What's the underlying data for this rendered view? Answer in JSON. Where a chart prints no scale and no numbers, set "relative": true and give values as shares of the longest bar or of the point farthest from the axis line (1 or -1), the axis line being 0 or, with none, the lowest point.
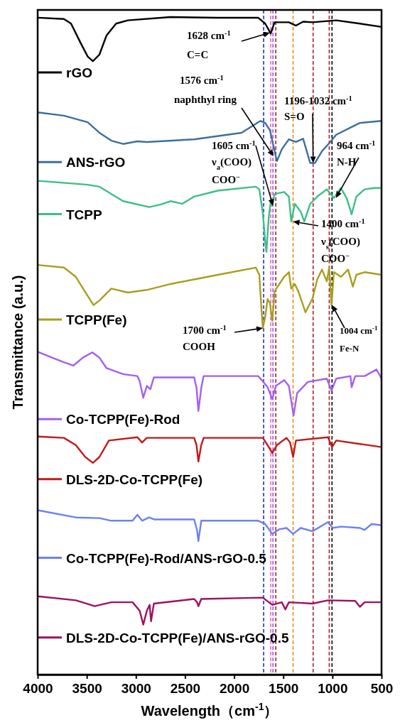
{
  "chart_data": {
    "type": "line",
    "relative": true,
    "xlabel": "Wavelength（cm$^{-1}$）",
    "ylabel": "Transmittance (a.u.)",
    "xlim": [
      4000,
      500
    ],
    "xticks": [
      4000,
      3500,
      3000,
      2500,
      2000,
      1500,
      1000,
      500
    ],
    "grid": false,
    "legend": "left",
    "marker": "none",
    "line_style": "solid",
    "series": [
      {
        "name": "rGO",
        "color": "#000000",
        "x": [
          4000,
          3733,
          3660,
          3564,
          3491,
          3438,
          3371,
          3299,
          3202,
          3082,
          2648,
          2166,
          1756,
          1684,
          1628,
          1588,
          1443,
          1371,
          1298,
          1202,
          961,
          720,
          500
        ],
        "values": [
          0.999,
          0.997,
          0.99,
          0.961,
          0.94,
          0.933,
          0.943,
          0.972,
          0.99,
          0.995,
          1,
          0.999,
          0.999,
          0.99,
          0.975,
          0.992,
          0.992,
          0.987,
          0.993,
          0.992,
          0.995,
          0.99,
          0.985
        ]
      },
      {
        "name": "ANS-rGO",
        "color": "#3d6f9c",
        "x": [
          4000,
          3733,
          3491,
          3371,
          3250,
          3130,
          2985,
          2889,
          2407,
          1925,
          1732,
          1684,
          1636,
          1576,
          1564,
          1515,
          1443,
          1371,
          1298,
          1226,
          1178,
          1106,
          1033,
          961,
          816,
          720,
          500
        ],
        "values": [
          0.855,
          0.85,
          0.84,
          0.824,
          0.812,
          0.807,
          0.811,
          0.81,
          0.814,
          0.824,
          0.842,
          0.839,
          0.828,
          0.788,
          0.781,
          0.799,
          0.814,
          0.81,
          0.815,
          0.778,
          0.778,
          0.796,
          0.808,
          0.821,
          0.832,
          0.839,
          0.842
        ]
      },
      {
        "name": "TCPP",
        "color": "#3cbf86",
        "x": [
          4000,
          3491,
          3371,
          3130,
          2865,
          2744,
          2648,
          2528,
          2407,
          2166,
          1780,
          1744,
          1708,
          1684,
          1672,
          1648,
          1624,
          1612,
          1588,
          1491,
          1443,
          1419,
          1383,
          1323,
          1286,
          1226,
          1154,
          1057,
          985,
          913,
          853,
          804,
          756,
          672,
          575,
          500
        ],
        "values": [
          0.751,
          0.745,
          0.742,
          0.72,
          0.711,
          0.715,
          0.72,
          0.716,
          0.727,
          0.736,
          0.742,
          0.738,
          0.702,
          0.659,
          0.643,
          0.695,
          0.724,
          0.713,
          0.731,
          0.734,
          0.727,
          0.689,
          0.716,
          0.704,
          0.689,
          0.716,
          0.727,
          0.738,
          0.725,
          0.74,
          0.724,
          0.7,
          0.727,
          0.738,
          0.74,
          0.74
        ]
      },
      {
        "name": "TCPP(Fe)",
        "color": "#a89e1e",
        "x": [
          4000,
          3733,
          3612,
          3491,
          3431,
          3371,
          3250,
          3082,
          2889,
          2648,
          2166,
          1780,
          1744,
          1720,
          1708,
          1684,
          1660,
          1636,
          1612,
          1588,
          1491,
          1443,
          1419,
          1383,
          1347,
          1274,
          1202,
          1154,
          1106,
          1057,
          1033,
          1009,
          985,
          913,
          840,
          792,
          756,
          672,
          500
        ],
        "values": [
          0.623,
          0.619,
          0.605,
          0.576,
          0.562,
          0.569,
          0.587,
          0.581,
          0.585,
          0.594,
          0.608,
          0.619,
          0.608,
          0.551,
          0.527,
          0.544,
          0.571,
          0.565,
          0.538,
          0.583,
          0.605,
          0.612,
          0.587,
          0.594,
          0.583,
          0.551,
          0.572,
          0.601,
          0.616,
          0.598,
          0.619,
          0.562,
          0.612,
          0.605,
          0.616,
          0.59,
          0.608,
          0.612,
          0.608
        ]
      },
      {
        "name": "Co-TCPP(Fe)-Rod",
        "color": "#a35ff2",
        "x": [
          4000,
          3853,
          3733,
          3636,
          3540,
          3443,
          3371,
          3299,
          3130,
          2985,
          2961,
          2925,
          2889,
          2853,
          2817,
          2407,
          2383,
          2364,
          2335,
          2311,
          1756,
          1708,
          1660,
          1612,
          1576,
          1491,
          1443,
          1395,
          1359,
          1250,
          1057,
          1009,
          961,
          816,
          804,
          768,
          672,
          551,
          500
        ],
        "values": [
          0.491,
          0.482,
          0.475,
          0.47,
          0.482,
          0.49,
          0.482,
          0.466,
          0.457,
          0.454,
          0.446,
          0.421,
          0.439,
          0.434,
          0.452,
          0.452,
          0.436,
          0.401,
          0.436,
          0.454,
          0.454,
          0.446,
          0.437,
          0.419,
          0.439,
          0.448,
          0.439,
          0.394,
          0.428,
          0.445,
          0.45,
          0.432,
          0.45,
          0.454,
          0.437,
          0.454,
          0.454,
          0.464,
          0.45
        ]
      },
      {
        "name": "DLS-2D-Co-TCPP(Fe)",
        "color": "#c01a1a",
        "x": [
          4000,
          3733,
          3612,
          3516,
          3438,
          3371,
          3275,
          2985,
          2937,
          2889,
          2407,
          2383,
          2364,
          2335,
          2311,
          1708,
          1660,
          1612,
          1564,
          1467,
          1431,
          1400,
          1371,
          1045,
          1004,
          961,
          500
        ],
        "values": [
          0.362,
          0.36,
          0.349,
          0.331,
          0.322,
          0.331,
          0.356,
          0.361,
          0.353,
          0.36,
          0.36,
          0.349,
          0.324,
          0.349,
          0.36,
          0.36,
          0.349,
          0.337,
          0.349,
          0.36,
          0.353,
          0.331,
          0.356,
          0.361,
          0.346,
          0.356,
          0.346
        ]
      },
      {
        "name": "Co-TCPP(Fe)-Rod/ANS-rGO-0.5",
        "color": "#6a82f2",
        "x": [
          4000,
          3612,
          3371,
          3250,
          3034,
          2985,
          2937,
          2865,
          2817,
          2407,
          2378,
          2364,
          2335,
          1756,
          1684,
          1612,
          1540,
          1467,
          1400,
          1323,
          1202,
          1045,
          997,
          913,
          720,
          672,
          600,
          500
        ],
        "values": [
          0.25,
          0.239,
          0.238,
          0.234,
          0.234,
          0.243,
          0.234,
          0.239,
          0.236,
          0.236,
          0.22,
          0.203,
          0.234,
          0.234,
          0.229,
          0.214,
          0.221,
          0.223,
          0.214,
          0.223,
          0.218,
          0.232,
          0.223,
          0.225,
          0.223,
          0.22,
          0.229,
          0.227
        ]
      },
      {
        "name": "DLS-2D-Co-TCPP(Fe)/ANS-rGO-0.5",
        "color": "#9c1262",
        "x": [
          4000,
          3612,
          3419,
          3250,
          3034,
          2961,
          2925,
          2889,
          2860,
          2846,
          2817,
          2407,
          2378,
          2364,
          2335,
          1708,
          1612,
          1515,
          1479,
          1443,
          1202,
          1045,
          768,
          720,
          672,
          500
        ],
        "values": [
          0.119,
          0.113,
          0.104,
          0.11,
          0.11,
          0.097,
          0.076,
          0.097,
          0.106,
          0.081,
          0.108,
          0.115,
          0.11,
          0.104,
          0.115,
          0.117,
          0.106,
          0.11,
          0.099,
          0.11,
          0.108,
          0.113,
          0.112,
          0.103,
          0.11,
          0.11
        ]
      }
    ],
    "ref_lines": [
      {
        "axis": "x",
        "value": 1628,
        "color": "#e864c8",
        "line_style": "dashed"
      },
      {
        "axis": "x",
        "value": 1576,
        "color": "#b01e1e",
        "line_style": "dashed"
      },
      {
        "axis": "x",
        "value": 1196,
        "color": "#b01e1e",
        "line_style": "dashed"
      },
      {
        "axis": "x",
        "value": 1032,
        "color": "#b01e1e",
        "line_style": "dashed"
      },
      {
        "axis": "x",
        "value": 1700,
        "color": "#1e32c8",
        "line_style": "dashed"
      },
      {
        "axis": "x",
        "value": 1605,
        "color": "#a050f0",
        "line_style": "dashed"
      },
      {
        "axis": "x",
        "value": 1400,
        "color": "#f08a1e",
        "line_style": "dashed"
      },
      {
        "axis": "x",
        "value": 1004,
        "color": "#000000",
        "line_style": "dashed"
      }
    ],
    "annotations": [
      "1628 cm$^{-1}$",
      "C=C",
      "1576 cm$^{-1}$",
      "naphthyl ring",
      {
        "text": "1196-1032 cm$^{-1}$",
        "x": 1196,
        "y": 0.778
      },
      "S=O",
      {
        "text": "964 cm$^{-1}$",
        "x": 964,
        "y": 0.725
      },
      "N-H",
      {
        "text": "1605 cm$^{-1}$",
        "x": 1605,
        "y": 0.713
      },
      "ν$_{a}$(COO)",
      "COO$^{−}$",
      {
        "text": "1400 cm$^{-1}$",
        "x": 1400,
        "y": 0.689
      },
      "ν$_{s}$(COO)",
      "COO$^{−}$",
      "1700 cm$^{-1}$",
      "COOH",
      {
        "text": "1004 cm$^{-1}$",
        "x": 1004,
        "y": 0.562
      },
      "Fe-N"
    ]
  }
}
